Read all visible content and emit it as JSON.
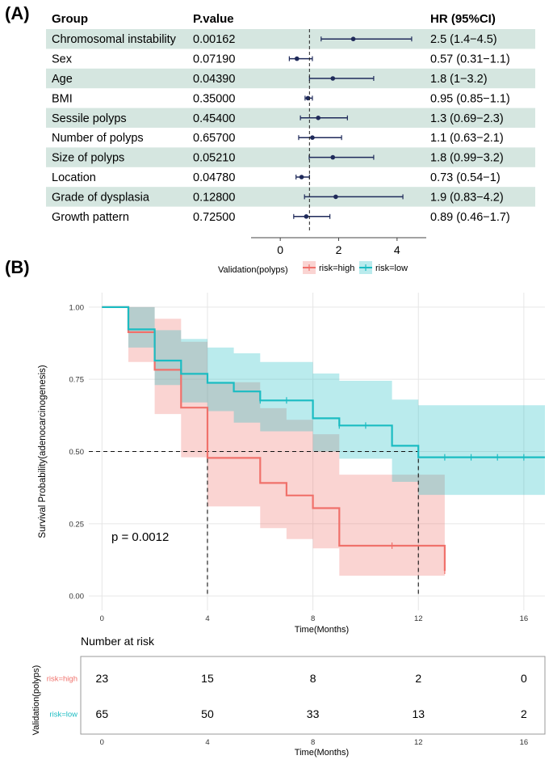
{
  "panel_a": {
    "letter": "(A)",
    "headers": {
      "group": "Group",
      "pvalue": "P.value",
      "hr": "HR (95%CI)"
    },
    "axis_ticks": [
      0,
      2,
      4
    ]
  },
  "panel_b": {
    "letter": "(B)",
    "legend_title": "Validation(polyps)",
    "pvalue_text": "p = 0.0012",
    "risk_table_title": "Number at risk"
  },
  "colors": {
    "high": "#f0716b",
    "low": "#1bbcc2",
    "band": "#d5e6e0",
    "forest_point": "#1f2a5a"
  },
  "chart_data": [
    {
      "type": "forest",
      "title": "",
      "rows": [
        {
          "group": "Chromosomal instability",
          "pvalue": "0.00162",
          "hr_text": "2.5 (1.4−4.5)",
          "hr": 2.5,
          "lo": 1.4,
          "hi": 4.5,
          "shaded": true
        },
        {
          "group": "Sex",
          "pvalue": "0.07190",
          "hr_text": "0.57 (0.31−1.1)",
          "hr": 0.57,
          "lo": 0.31,
          "hi": 1.1,
          "shaded": false
        },
        {
          "group": "Age",
          "pvalue": "0.04390",
          "hr_text": "1.8 (1−3.2)",
          "hr": 1.8,
          "lo": 1.0,
          "hi": 3.2,
          "shaded": true
        },
        {
          "group": "BMI",
          "pvalue": "0.35000",
          "hr_text": "0.95 (0.85−1.1)",
          "hr": 0.95,
          "lo": 0.85,
          "hi": 1.1,
          "shaded": false
        },
        {
          "group": "Sessile polyps",
          "pvalue": "0.45400",
          "hr_text": "1.3 (0.69−2.3)",
          "hr": 1.3,
          "lo": 0.69,
          "hi": 2.3,
          "shaded": true
        },
        {
          "group": "Number of polyps",
          "pvalue": "0.65700",
          "hr_text": "1.1 (0.63−2.1)",
          "hr": 1.1,
          "lo": 0.63,
          "hi": 2.1,
          "shaded": false
        },
        {
          "group": "Size of polyps",
          "pvalue": "0.05210",
          "hr_text": "1.8 (0.99−3.2)",
          "hr": 1.8,
          "lo": 0.99,
          "hi": 3.2,
          "shaded": true
        },
        {
          "group": "Location",
          "pvalue": "0.04780",
          "hr_text": "0.73 (0.54−1)",
          "hr": 0.73,
          "lo": 0.54,
          "hi": 1.0,
          "shaded": false
        },
        {
          "group": "Grade of dysplasia",
          "pvalue": "0.12800",
          "hr_text": "1.9 (0.83−4.2)",
          "hr": 1.9,
          "lo": 0.83,
          "hi": 4.2,
          "shaded": true
        },
        {
          "group": "Growth pattern",
          "pvalue": "0.72500",
          "hr_text": "0.89 (0.46−1.7)",
          "hr": 0.89,
          "lo": 0.46,
          "hi": 1.7,
          "shaded": false
        }
      ],
      "reference_line": 1,
      "xlim": [
        -1,
        5
      ],
      "xticks": [
        0,
        2,
        4
      ]
    },
    {
      "type": "line",
      "subtype": "kaplan-meier",
      "title": "",
      "xlabel": "Time(Months)",
      "ylabel": "Survival Probability(adenocarcinogenesis)",
      "xlim": [
        -0.5,
        16.8
      ],
      "ylim": [
        -0.05,
        1.05
      ],
      "xticks": [
        0,
        4,
        8,
        12,
        16
      ],
      "yticks": [
        "0.00",
        "0.25",
        "0.50",
        "0.75",
        "1.00"
      ],
      "grid": true,
      "legend_position": "top",
      "median_line": {
        "y": 0.5,
        "x_high": 4,
        "x_low": 12
      },
      "series": [
        {
          "name": "risk=high",
          "color": "#f0716b",
          "steps": [
            [
              0,
              1.0
            ],
            [
              1,
              0.913
            ],
            [
              2,
              0.783
            ],
            [
              3,
              0.652
            ],
            [
              4,
              0.478
            ],
            [
              6,
              0.391
            ],
            [
              7,
              0.348
            ],
            [
              8,
              0.304
            ],
            [
              9,
              0.174
            ],
            [
              13,
              0.087
            ]
          ],
          "end_x": 13,
          "censored": [
            [
              11,
              0.174
            ],
            [
              13,
              0.087
            ]
          ],
          "band": [
            [
              0,
              1.0,
              1.0
            ],
            [
              1,
              0.81,
              1.0
            ],
            [
              2,
              0.63,
              0.96
            ],
            [
              3,
              0.48,
              0.88
            ],
            [
              4,
              0.31,
              0.74
            ],
            [
              6,
              0.235,
              0.65
            ],
            [
              7,
              0.197,
              0.61
            ],
            [
              8,
              0.165,
              0.56
            ],
            [
              9,
              0.07,
              0.42
            ],
            [
              13,
              0.07,
              0.42
            ]
          ],
          "band_end_x": 13
        },
        {
          "name": "risk=low",
          "color": "#1bbcc2",
          "steps": [
            [
              0,
              1.0
            ],
            [
              1,
              0.923
            ],
            [
              2,
              0.815
            ],
            [
              3,
              0.769
            ],
            [
              4,
              0.738
            ],
            [
              5,
              0.708
            ],
            [
              6,
              0.677
            ],
            [
              8,
              0.615
            ],
            [
              9,
              0.59
            ],
            [
              11,
              0.52
            ],
            [
              12,
              0.48
            ]
          ],
          "end_x": 16.8,
          "censored": [
            [
              6,
              0.677
            ],
            [
              7,
              0.677
            ],
            [
              9,
              0.59
            ],
            [
              10,
              0.59
            ],
            [
              13,
              0.48
            ],
            [
              14,
              0.48
            ],
            [
              15,
              0.48
            ],
            [
              16,
              0.48
            ]
          ],
          "band": [
            [
              0,
              1.0,
              1.0
            ],
            [
              1,
              0.86,
              1.0
            ],
            [
              2,
              0.73,
              0.92
            ],
            [
              3,
              0.67,
              0.89
            ],
            [
              4,
              0.64,
              0.86
            ],
            [
              5,
              0.6,
              0.84
            ],
            [
              6,
              0.57,
              0.81
            ],
            [
              8,
              0.5,
              0.77
            ],
            [
              9,
              0.475,
              0.745
            ],
            [
              11,
              0.395,
              0.68
            ],
            [
              12,
              0.35,
              0.66
            ]
          ],
          "band_end_x": 16.8
        }
      ]
    },
    {
      "type": "table",
      "title": "Number at risk",
      "xlabel": "Time(Months)",
      "ylabel": "Validation(polyps)",
      "xticks": [
        0,
        4,
        8,
        12,
        16
      ],
      "rows": [
        {
          "name": "risk=high",
          "values": [
            23,
            15,
            8,
            2,
            0
          ]
        },
        {
          "name": "risk=low",
          "values": [
            65,
            50,
            33,
            13,
            2
          ]
        }
      ]
    }
  ]
}
